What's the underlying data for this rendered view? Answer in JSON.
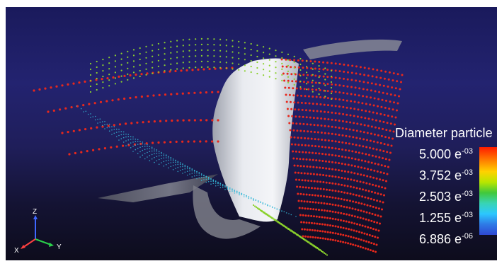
{
  "legend": {
    "title": "Diameter particle",
    "labels": [
      {
        "mantissa": "5.000 e",
        "exponent": "-03"
      },
      {
        "mantissa": "3.752 e",
        "exponent": "-03"
      },
      {
        "mantissa": "2.503 e",
        "exponent": "-03"
      },
      {
        "mantissa": "1.255 e",
        "exponent": "-03"
      },
      {
        "mantissa": "6.886 e",
        "exponent": "-06"
      }
    ]
  },
  "colors": {
    "large_particle": "#e8281c",
    "medium_particle": "#8bd12d",
    "small_particle": "#35b8d8",
    "background_top": "#1a1a5c",
    "background_bottom": "#0d0c1c",
    "surface": "#e6e8ee"
  },
  "axes": {
    "z": "Z",
    "x": "X",
    "y": "Y"
  }
}
